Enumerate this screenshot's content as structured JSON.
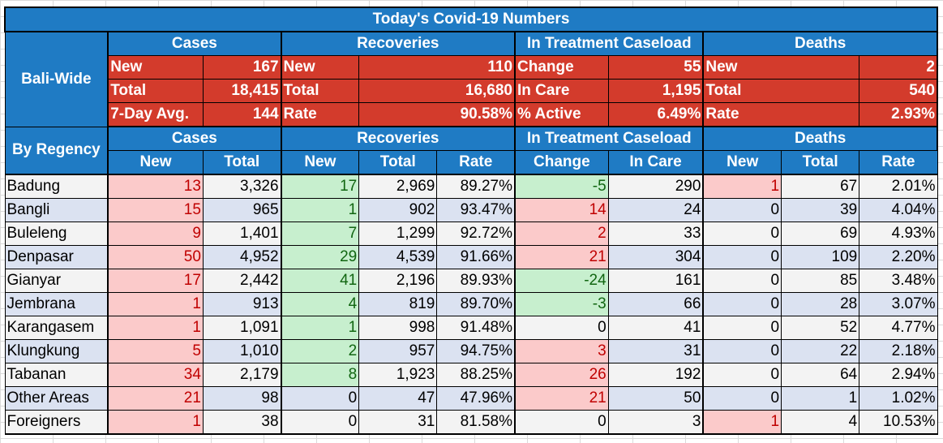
{
  "title": "Today's Covid-19 Numbers",
  "bali_wide": {
    "label": "Bali-Wide",
    "groups": [
      "Cases",
      "Recoveries",
      "In Treatment Caseload",
      "Deaths"
    ],
    "rows": [
      [
        [
          "New",
          "167"
        ],
        [
          "New",
          "110"
        ],
        [
          "Change",
          "55"
        ],
        [
          "New",
          "2"
        ]
      ],
      [
        [
          "Total",
          "18,415"
        ],
        [
          "Total",
          "16,680"
        ],
        [
          "In Care",
          "1,195"
        ],
        [
          "Total",
          "540"
        ]
      ],
      [
        [
          "7-Day Avg.",
          "144"
        ],
        [
          "Rate",
          "90.58%"
        ],
        [
          "% Active",
          "6.49%"
        ],
        [
          "Rate",
          "2.93%"
        ]
      ]
    ]
  },
  "by_regency": {
    "label": "By Regency",
    "groups": [
      "Cases",
      "Recoveries",
      "In Treatment Caseload",
      "Deaths"
    ],
    "subheaders": [
      "New",
      "Total",
      "New",
      "Total",
      "Rate",
      "Change",
      "In Care",
      "New",
      "Total",
      "Rate"
    ],
    "rows": [
      {
        "region": "Badung",
        "cells": [
          "13",
          "3,326",
          "17",
          "2,969",
          "89.27%",
          "-5",
          "290",
          "1",
          "67",
          "2.01%"
        ]
      },
      {
        "region": "Bangli",
        "cells": [
          "15",
          "965",
          "1",
          "902",
          "93.47%",
          "14",
          "24",
          "0",
          "39",
          "4.04%"
        ]
      },
      {
        "region": "Buleleng",
        "cells": [
          "9",
          "1,401",
          "7",
          "1,299",
          "92.72%",
          "2",
          "33",
          "0",
          "69",
          "4.93%"
        ]
      },
      {
        "region": "Denpasar",
        "cells": [
          "50",
          "4,952",
          "29",
          "4,539",
          "91.66%",
          "21",
          "304",
          "0",
          "109",
          "2.20%"
        ]
      },
      {
        "region": "Gianyar",
        "cells": [
          "17",
          "2,442",
          "41",
          "2,196",
          "89.93%",
          "-24",
          "161",
          "0",
          "85",
          "3.48%"
        ]
      },
      {
        "region": "Jembrana",
        "cells": [
          "1",
          "913",
          "4",
          "819",
          "89.70%",
          "-3",
          "66",
          "0",
          "28",
          "3.07%"
        ]
      },
      {
        "region": "Karangasem",
        "cells": [
          "1",
          "1,091",
          "1",
          "998",
          "91.48%",
          "0",
          "41",
          "0",
          "52",
          "4.77%"
        ]
      },
      {
        "region": "Klungkung",
        "cells": [
          "5",
          "1,010",
          "2",
          "957",
          "94.75%",
          "3",
          "31",
          "0",
          "22",
          "2.18%"
        ]
      },
      {
        "region": "Tabanan",
        "cells": [
          "34",
          "2,179",
          "8",
          "1,923",
          "88.25%",
          "26",
          "192",
          "0",
          "64",
          "2.94%"
        ]
      },
      {
        "region": "Other Areas",
        "cells": [
          "21",
          "98",
          "0",
          "47",
          "47.96%",
          "21",
          "50",
          "0",
          "1",
          "1.02%"
        ]
      },
      {
        "region": "Foreigners",
        "cells": [
          "1",
          "38",
          "0",
          "31",
          "81.58%",
          "0",
          "3",
          "1",
          "4",
          "10.53%"
        ]
      }
    ]
  },
  "colors": {
    "header_blue": "#1f7bc4",
    "summary_red": "#d33b2c",
    "highlight_pink": "#fbcaca",
    "highlight_green": "#c7efce",
    "row_gray": "#f3f3f3",
    "row_blue": "#dbe2f1"
  }
}
